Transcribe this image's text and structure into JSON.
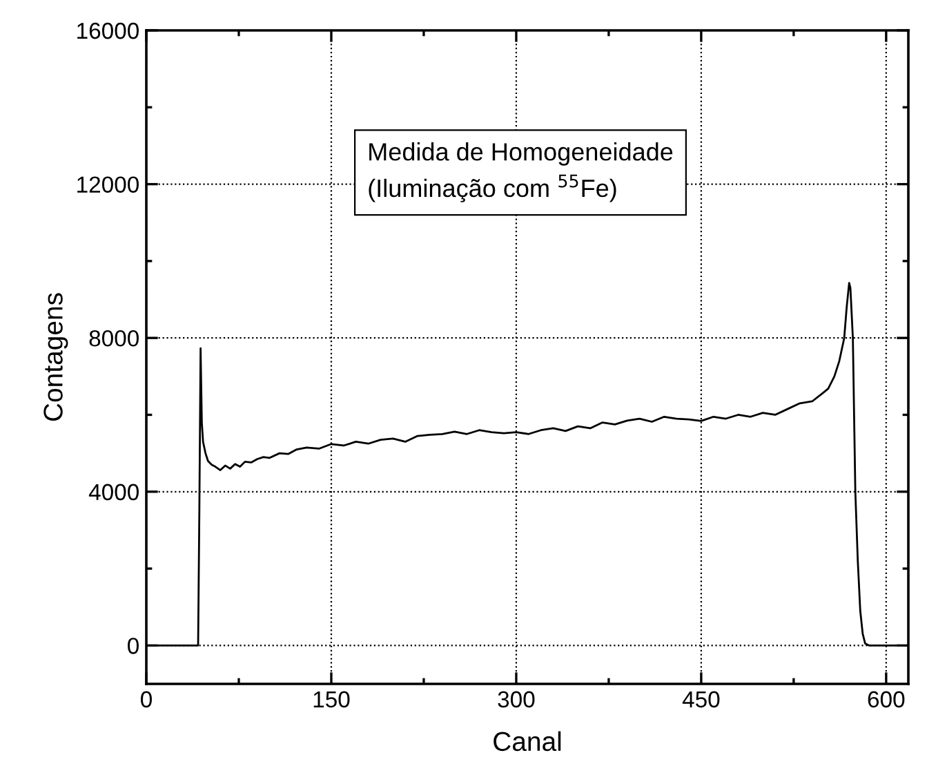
{
  "chart_data": {
    "type": "line",
    "xlabel": "Canal",
    "ylabel": "Contagens",
    "annotations": [
      "Medida de Homogeneidade\n(Iluminação com $^{55}$Fe)"
    ],
    "x": [
      0,
      20,
      42,
      43,
      44,
      45,
      46,
      48,
      50,
      53,
      56,
      60,
      64,
      68,
      72,
      76,
      80,
      85,
      90,
      95,
      100,
      108,
      115,
      122,
      130,
      140,
      150,
      160,
      170,
      180,
      190,
      200,
      210,
      220,
      230,
      240,
      250,
      260,
      270,
      280,
      290,
      300,
      310,
      320,
      330,
      340,
      350,
      360,
      370,
      380,
      390,
      400,
      410,
      420,
      430,
      440,
      450,
      460,
      470,
      480,
      490,
      500,
      510,
      520,
      530,
      540,
      548,
      553,
      558,
      562,
      566,
      568,
      570,
      571,
      573,
      574,
      575,
      577,
      579,
      581,
      583,
      586,
      600,
      618
    ],
    "series": [
      {
        "color": "#000000",
        "values": [
          0,
          0,
          0,
          3500,
          7730,
          5800,
          5300,
          5000,
          4800,
          4700,
          4650,
          4560,
          4680,
          4600,
          4720,
          4650,
          4780,
          4760,
          4850,
          4900,
          4880,
          5000,
          4980,
          5100,
          5150,
          5120,
          5240,
          5200,
          5300,
          5250,
          5350,
          5380,
          5300,
          5450,
          5480,
          5500,
          5560,
          5500,
          5600,
          5550,
          5520,
          5550,
          5500,
          5600,
          5650,
          5580,
          5700,
          5650,
          5800,
          5750,
          5850,
          5900,
          5820,
          5950,
          5900,
          5880,
          5840,
          5950,
          5900,
          6000,
          5950,
          6050,
          6000,
          6150,
          6300,
          6350,
          6550,
          6680,
          7000,
          7400,
          8000,
          8800,
          9430,
          9300,
          8000,
          6000,
          4000,
          2200,
          900,
          300,
          50,
          0,
          0,
          0
        ]
      }
    ],
    "xlim": [
      0,
      618
    ],
    "xticks": [
      0,
      150,
      300,
      450,
      600
    ],
    "ylim": [
      -1000,
      16000
    ],
    "yticks": [
      0,
      4000,
      8000,
      12000,
      16000
    ],
    "grid": true,
    "line_style": "solid",
    "marker": "none"
  }
}
